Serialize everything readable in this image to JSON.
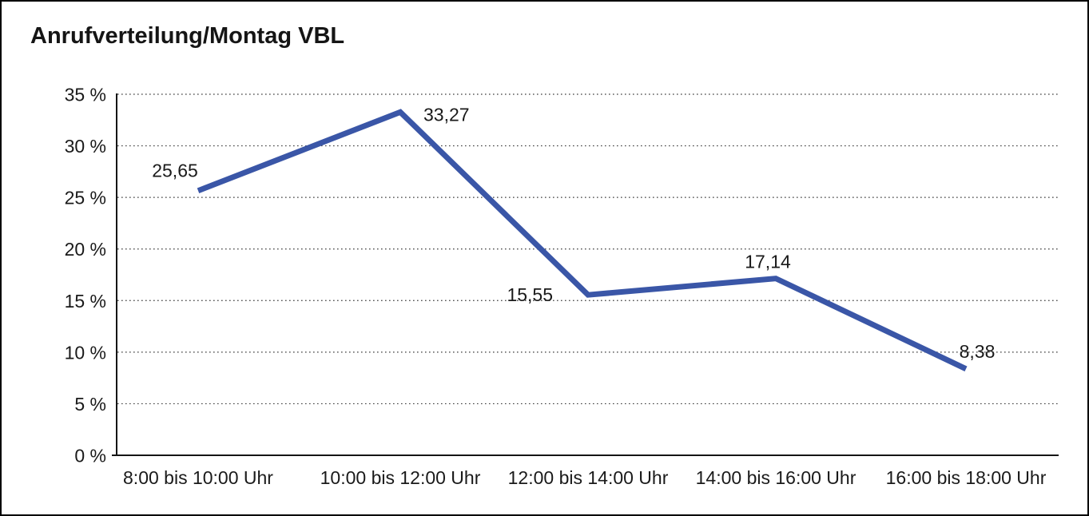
{
  "chart_data": {
    "type": "line",
    "title": "Anrufverteilung/Montag VBL",
    "categories": [
      "8:00 bis 10:00 Uhr",
      "10:00 bis 12:00 Uhr",
      "12:00 bis 14:00 Uhr",
      "14:00 bis 16:00 Uhr",
      "16:00 bis 18:00 Uhr"
    ],
    "values": [
      25.65,
      33.27,
      15.55,
      17.14,
      8.38
    ],
    "point_labels": [
      "25,65",
      "33,27",
      "15,55",
      "17,14",
      "8,38"
    ],
    "label_anchors": [
      "above-left",
      "right",
      "left",
      "above",
      "above-right"
    ],
    "xlabel": "",
    "ylabel": "",
    "ylim": [
      0,
      35
    ],
    "ytick_step": 5,
    "ytick_labels": [
      "0 %",
      "5 %",
      "10 %",
      "15 %",
      "20 %",
      "25 %",
      "30 %",
      "35 %"
    ],
    "grid": "horizontal-dotted",
    "legend": "none",
    "series_color": "#3A56A7",
    "grid_color": "#3c3c3c",
    "axis_color": "#151515",
    "text_color": "#1a1a1a",
    "background": "#ffffff",
    "border_color": "#000000"
  }
}
